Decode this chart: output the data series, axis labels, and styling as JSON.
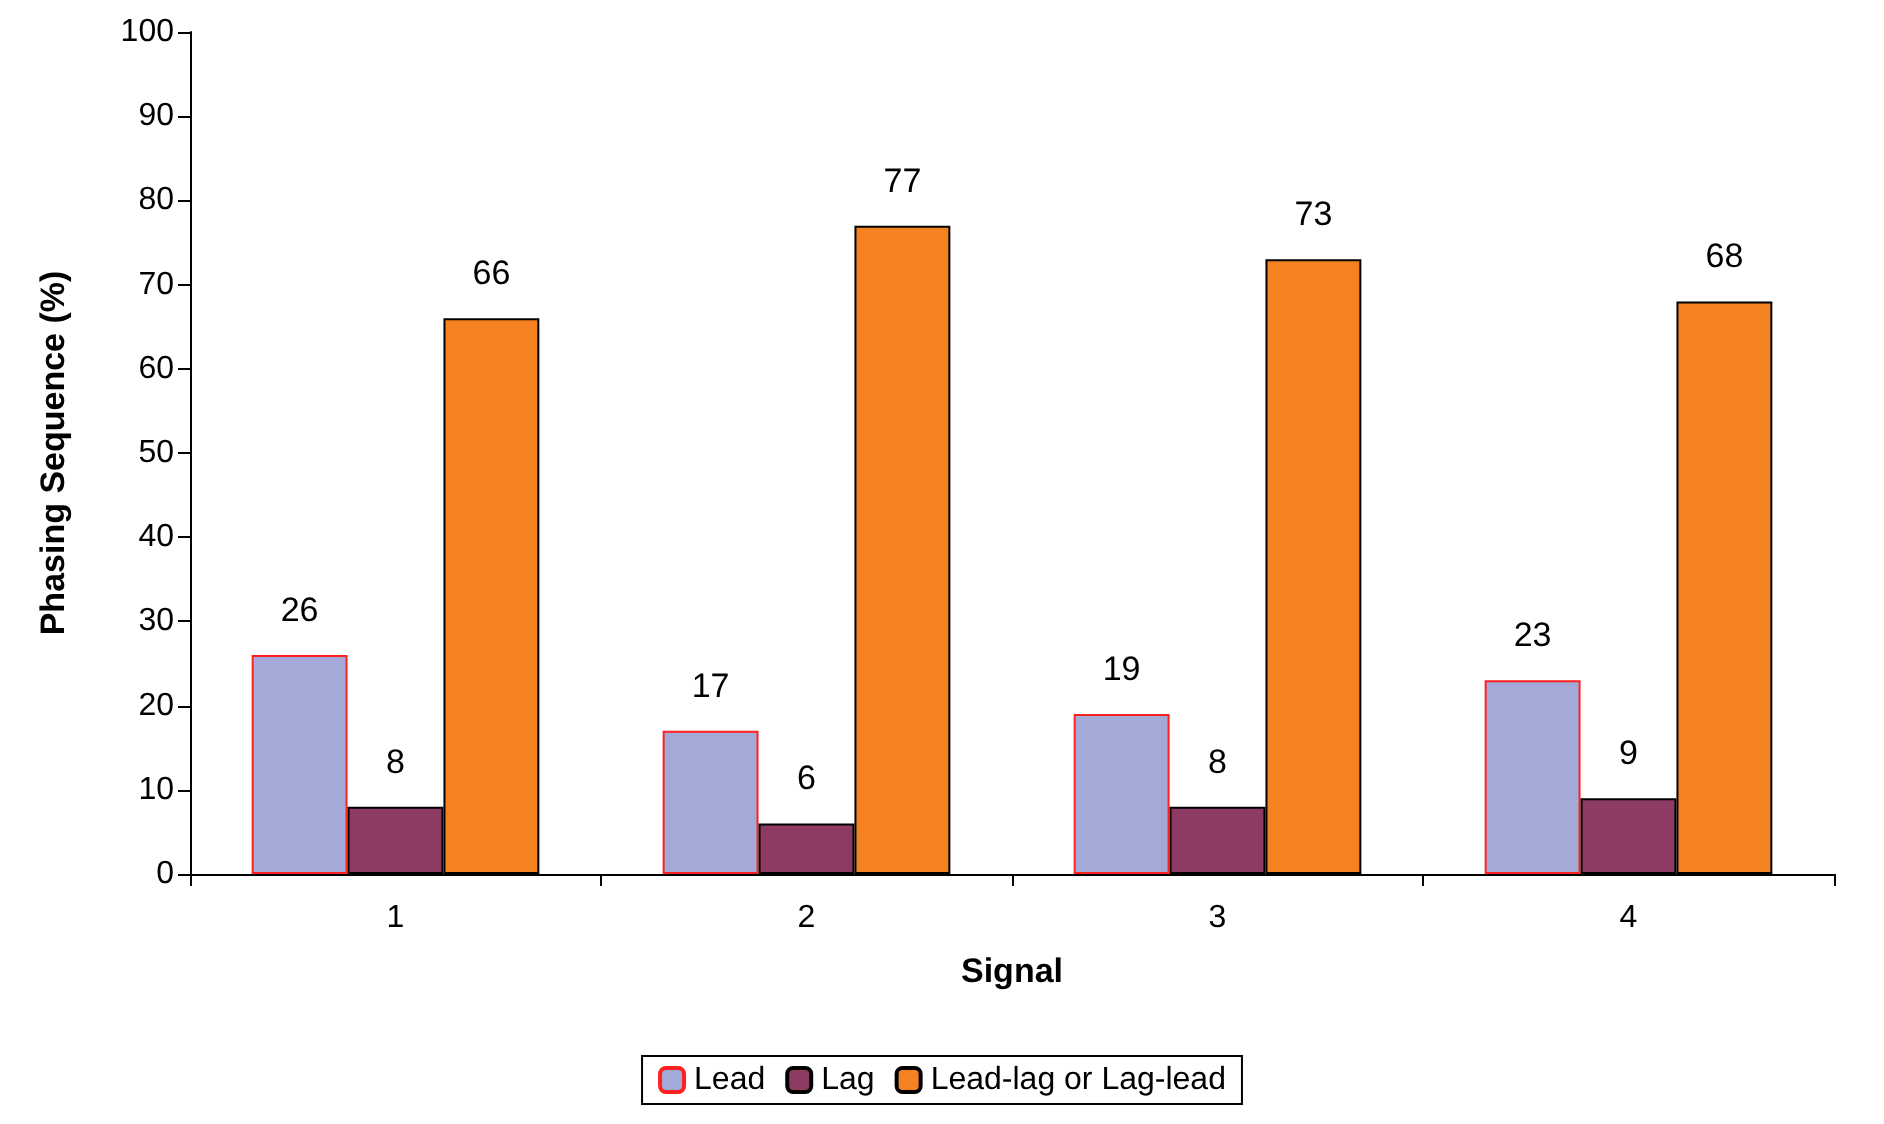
{
  "chart_data": {
    "type": "bar",
    "xlabel": "Signal",
    "ylabel": "Phasing Sequence (%)",
    "categories": [
      "1",
      "2",
      "3",
      "4"
    ],
    "series": [
      {
        "name": "Lead",
        "color": "#a3aad8",
        "values": [
          26,
          17,
          19,
          23
        ]
      },
      {
        "name": "Lag",
        "color": "#8e3b63",
        "values": [
          8,
          6,
          8,
          9
        ]
      },
      {
        "name": "Lead-lag or Lag-lead",
        "color": "#f58220",
        "values": [
          66,
          77,
          73,
          68
        ]
      }
    ],
    "ylim": [
      0,
      100
    ],
    "yticks": [
      0,
      10,
      20,
      30,
      40,
      50,
      60,
      70,
      80,
      90,
      100
    ],
    "grid": false,
    "legend": "bottom",
    "data_labels": true
  }
}
